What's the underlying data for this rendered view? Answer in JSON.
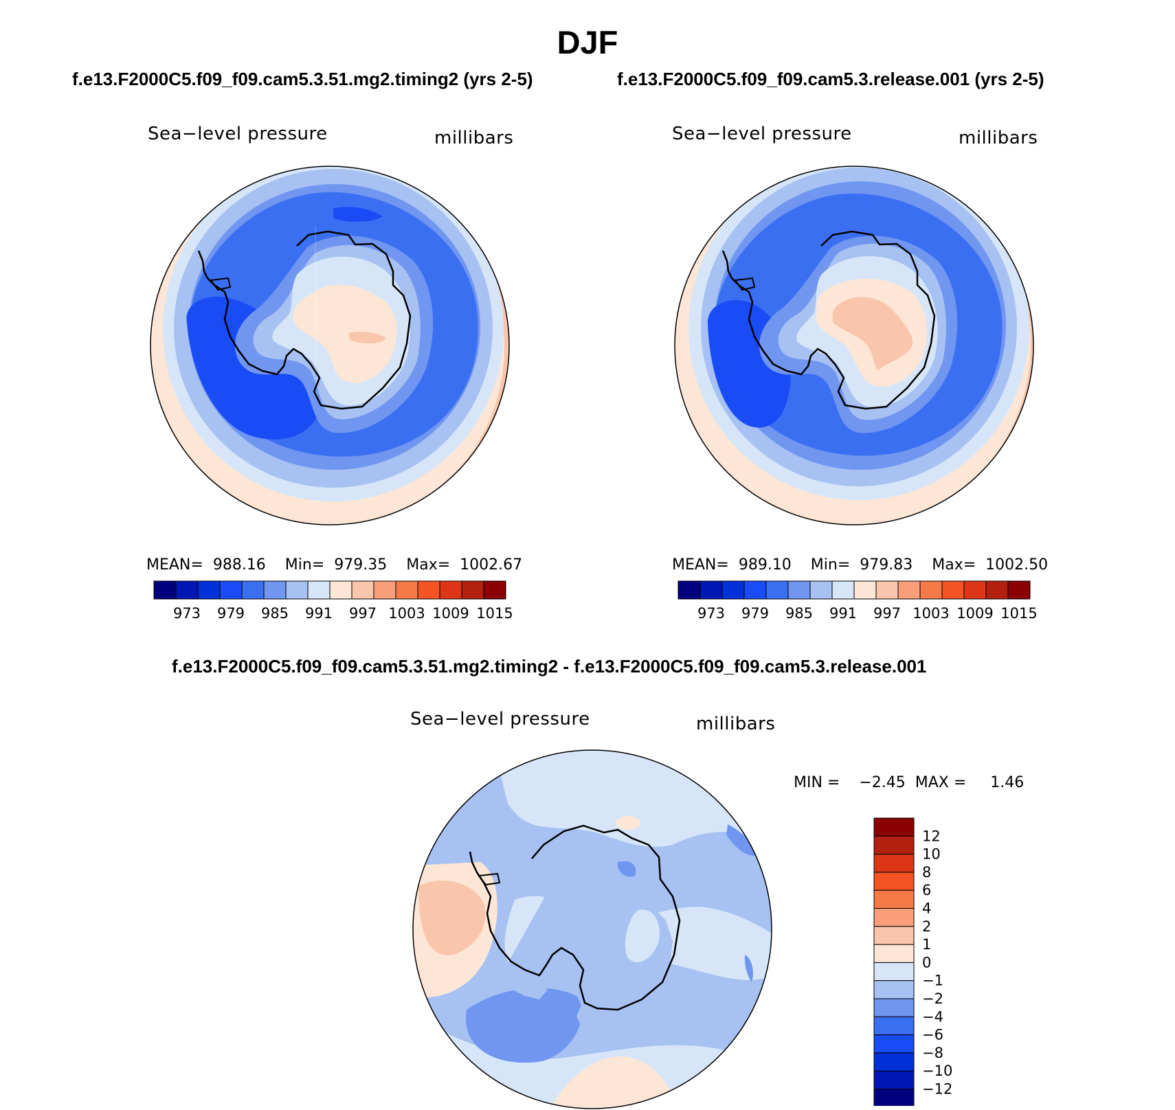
{
  "figure": {
    "title": "DJF"
  },
  "panels": [
    {
      "case_title": "f.e13.F2000C5.f09_f09.cam5.3.51.mg2.timing2 (yrs 2-5)",
      "variable": "Sea−level pressure",
      "units": "millibars",
      "stats": {
        "mean_label": "MEAN=",
        "mean": "988.16",
        "min_label": "Min=",
        "min": "979.35",
        "max_label": "Max=",
        "max": "1002.67"
      }
    },
    {
      "case_title": "f.e13.F2000C5.f09_f09.cam5.3.release.001 (yrs 2-5)",
      "variable": "Sea−level pressure",
      "units": "millibars",
      "stats": {
        "mean_label": "MEAN=",
        "mean": "989.10",
        "min_label": "Min=",
        "min": "979.83",
        "max_label": "Max=",
        "max": "1002.50"
      }
    }
  ],
  "diff_panel": {
    "case_title": "f.e13.F2000C5.f09_f09.cam5.3.51.mg2.timing2 - f.e13.F2000C5.f09_f09.cam5.3.release.001",
    "variable": "Sea−level pressure",
    "units": "millibars",
    "stats": {
      "min_label": "MIN =",
      "min": "−2.45",
      "max_label": "MAX =",
      "max": "1.46"
    }
  },
  "colorbar_main": {
    "colors": [
      "#00007f",
      "#0018b3",
      "#0030d8",
      "#1a4cf5",
      "#3b6ff2",
      "#7096f0",
      "#a6c1f2",
      "#d6e6f8",
      "#fde6d6",
      "#fac5ad",
      "#f89e7a",
      "#f67a48",
      "#f45326",
      "#dc3616",
      "#b32010",
      "#8b0000"
    ],
    "labels": [
      "973",
      "979",
      "985",
      "991",
      "997",
      "1003",
      "1009",
      "1015"
    ]
  },
  "colorbar_diff": {
    "colors_top_to_bottom": [
      "#8b0000",
      "#b32010",
      "#dc3616",
      "#f45326",
      "#f67a48",
      "#f89e7a",
      "#fac5ad",
      "#fde6d6",
      "#d6e6f8",
      "#a6c1f2",
      "#7096f0",
      "#3b6ff2",
      "#1a4cf5",
      "#0030d8",
      "#0018b3",
      "#00007f"
    ],
    "labels": [
      "12",
      "10",
      "8",
      "6",
      "4",
      "2",
      "1",
      "0",
      "−1",
      "−2",
      "−4",
      "−6",
      "−8",
      "−10",
      "−12"
    ]
  },
  "chart_data": {
    "type": "heatmap",
    "projection": "south polar stereographic",
    "variable": "Sea-level pressure",
    "units": "millibars",
    "season": "DJF",
    "maps": [
      {
        "name": "f.e13.F2000C5.f09_f09.cam5.3.51.mg2.timing2 (yrs 2-5)",
        "mean": 988.16,
        "min": 979.35,
        "max": 1002.67,
        "contour_levels": [
          973,
          976,
          979,
          982,
          985,
          988,
          991,
          994,
          997,
          1000,
          1003,
          1006,
          1009,
          1012,
          1015
        ]
      },
      {
        "name": "f.e13.F2000C5.f09_f09.cam5.3.release.001 (yrs 2-5)",
        "mean": 989.1,
        "min": 979.83,
        "max": 1002.5,
        "contour_levels": [
          973,
          976,
          979,
          982,
          985,
          988,
          991,
          994,
          997,
          1000,
          1003,
          1006,
          1009,
          1012,
          1015
        ]
      },
      {
        "name": "difference",
        "min": -2.45,
        "max": 1.46,
        "contour_levels": [
          -12,
          -10,
          -8,
          -6,
          -4,
          -2,
          -1,
          0,
          1,
          2,
          4,
          6,
          8,
          10,
          12
        ]
      }
    ]
  }
}
